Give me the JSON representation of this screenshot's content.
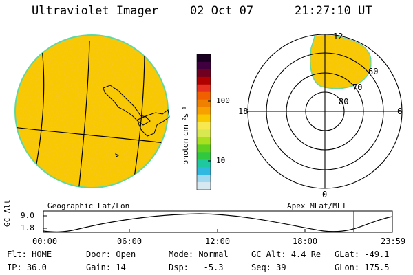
{
  "header": {
    "instrument": "Ultraviolet Imager",
    "date": "02 Oct 07",
    "time": "21:27:10 UT"
  },
  "colorbar": {
    "unit_label": "photon cm⁻²s⁻¹",
    "ticks": [
      "100",
      "10"
    ],
    "colors": [
      "#1a0020",
      "#400040",
      "#700020",
      "#b00000",
      "#e83020",
      "#f06000",
      "#f08000",
      "#f8a000",
      "#f8c800",
      "#f8e850",
      "#d8e850",
      "#a8e020",
      "#60d020",
      "#30c840",
      "#20c8a0",
      "#30b8e0",
      "#a0d8f0",
      "#d8e8f0"
    ]
  },
  "left_panel": {
    "caption": "Geographic Lat/Lon",
    "disc_color": "#f8c800"
  },
  "right_panel": {
    "caption": "Apex MLat/MLT",
    "mlt_labels": {
      "top": "12",
      "left": "18",
      "right": "6",
      "bottom": "0"
    },
    "lat_labels": [
      "60",
      "70",
      "80"
    ]
  },
  "altitude_plot": {
    "ylabel": "GC Alt",
    "yticks": [
      "9.0",
      "1.8"
    ],
    "xticks": [
      "00:00",
      "06:00",
      "12:00",
      "18:00",
      "23:59"
    ],
    "marker_color": "#c00000"
  },
  "status": {
    "row1": [
      {
        "key": "Flt:",
        "val": "HOME"
      },
      {
        "key": "Door:",
        "val": "Open"
      },
      {
        "key": "Mode:",
        "val": "Normal"
      },
      {
        "key": "GC Alt:",
        "val": "4.4 Re"
      },
      {
        "key": "GLat:",
        "val": "-49.1"
      }
    ],
    "row2": [
      {
        "key": "IP:",
        "val": "36.0"
      },
      {
        "key": "Gain:",
        "val": "14"
      },
      {
        "key": "Dsp:",
        "val": "  -5.3"
      },
      {
        "key": "Seq:",
        "val": "39"
      },
      {
        "key": "GLon:",
        "val": "175.5"
      }
    ]
  }
}
